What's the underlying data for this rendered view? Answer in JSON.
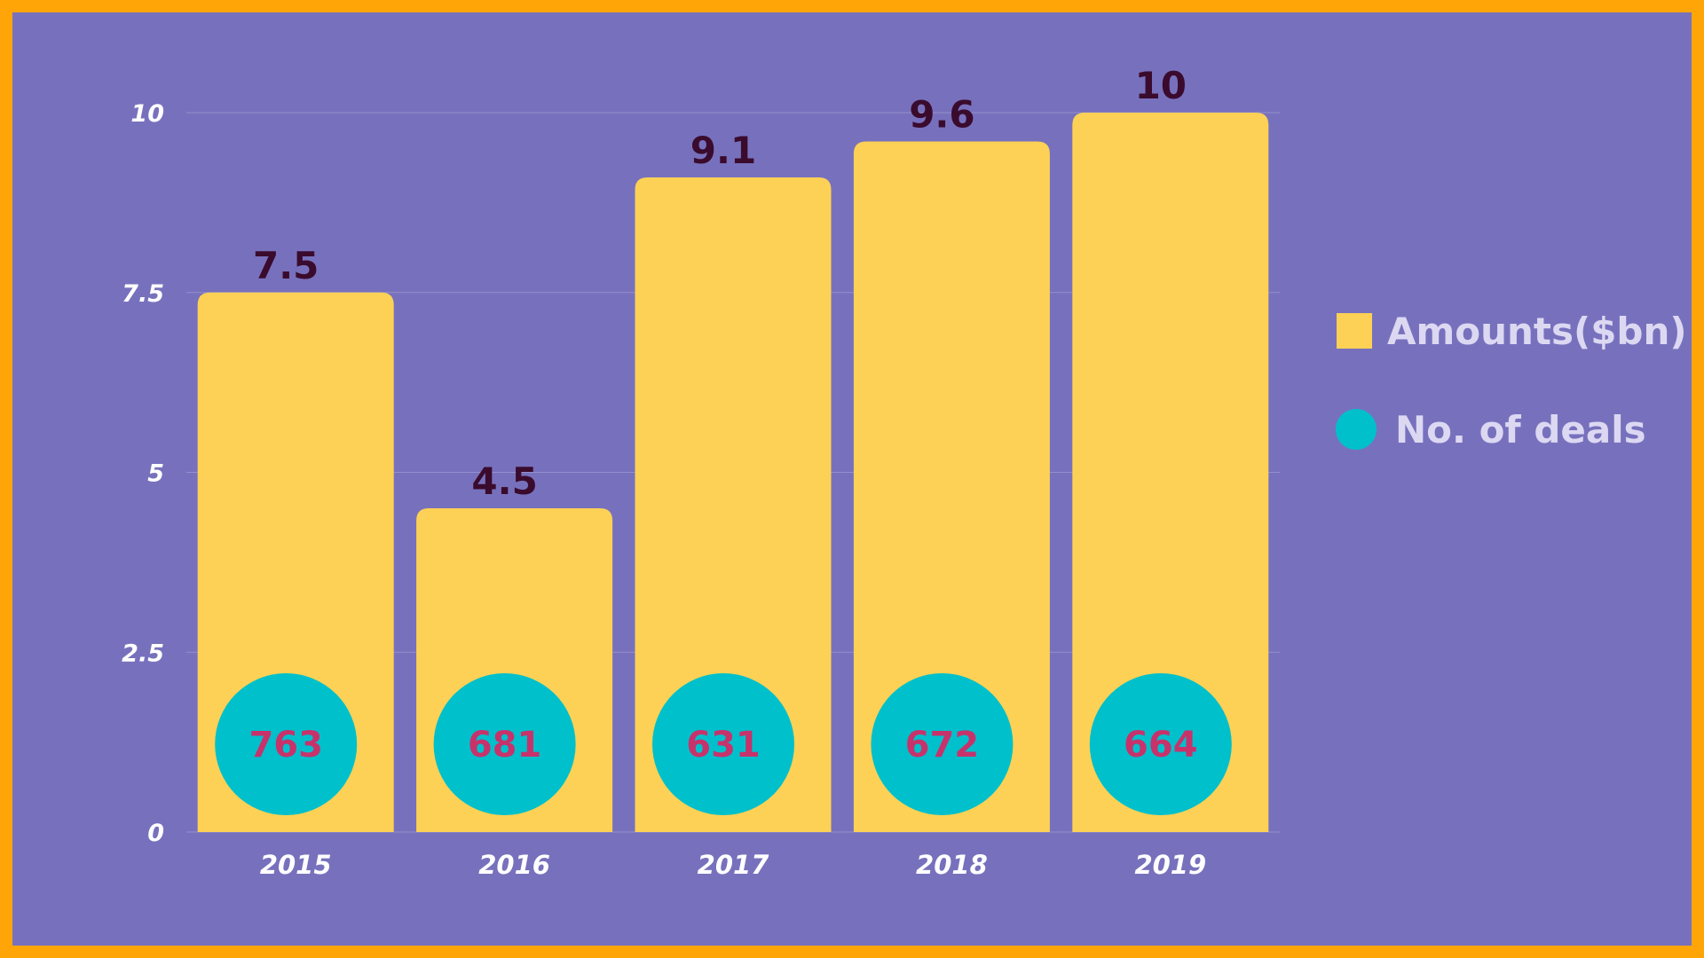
{
  "colors": {
    "border": "#FFA507",
    "background": "#7771BD",
    "bar": "#FDD155",
    "circle": "#00C0CC",
    "value_label": "#3A0B2D",
    "deal_label": "#C8326B",
    "axis_text": "#FFFFFF",
    "legend_text": "#DCD8F2",
    "grid": "#9590CC"
  },
  "legend": {
    "amounts": "Amounts($bn)",
    "deals": "No. of deals"
  },
  "chart_data": {
    "type": "bar",
    "categories": [
      "2015",
      "2016",
      "2017",
      "2018",
      "2019"
    ],
    "series": [
      {
        "name": "Amounts($bn)",
        "values": [
          7.5,
          4.5,
          9.1,
          9.6,
          10
        ]
      },
      {
        "name": "No. of deals",
        "values": [
          763,
          681,
          631,
          672,
          664
        ]
      }
    ],
    "yticks": [
      "0",
      "2.5",
      "5",
      "7.5",
      "10"
    ],
    "ylim": [
      0,
      10
    ],
    "grid": true,
    "legend_position": "right"
  }
}
